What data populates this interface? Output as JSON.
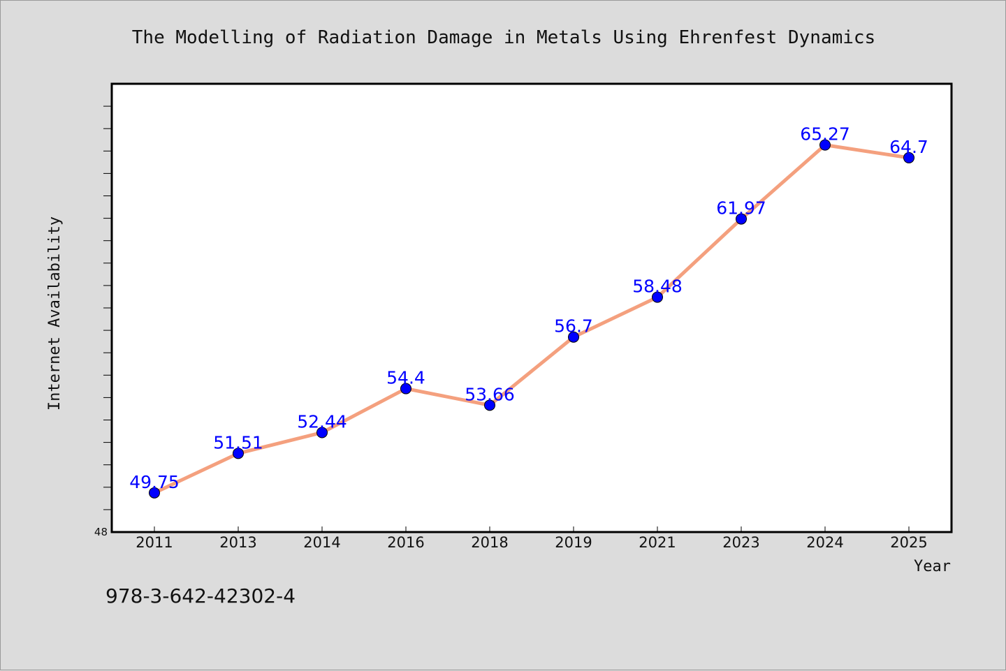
{
  "footer_text": "978-3-642-42302-4",
  "colors": {
    "background": "#dcdcdc",
    "plot_background": "#ffffff",
    "line": "#f4a07e",
    "marker": "#0000ff",
    "data_label": "#0000ff"
  },
  "chart_data": {
    "type": "line",
    "title": "The Modelling of Radiation Damage in Metals Using Ehrenfest Dynamics",
    "xlabel": "Year",
    "ylabel": "Internet Availability",
    "categories": [
      "2011",
      "2013",
      "2014",
      "2016",
      "2018",
      "2019",
      "2021",
      "2023",
      "2024",
      "2025"
    ],
    "series": [
      {
        "values": [
          49.75,
          51.51,
          52.44,
          54.4,
          53.66,
          56.7,
          58.48,
          61.97,
          65.27,
          64.7
        ],
        "labels": [
          "49.75",
          "51.51",
          "52.44",
          "54.4",
          "53.66",
          "56.7",
          "58.48",
          "61.97",
          "65.27",
          "64.7"
        ]
      }
    ],
    "ylim": [
      48,
      68
    ],
    "y_tick_labels": [
      "48"
    ],
    "grid": false,
    "legend": "none"
  }
}
